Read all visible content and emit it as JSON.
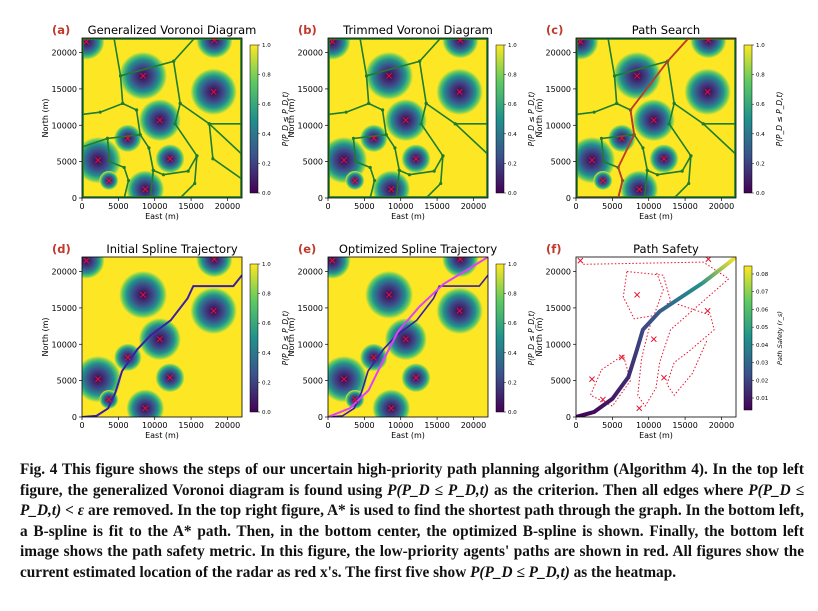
{
  "figure": {
    "panels": [
      {
        "letter": "(a)",
        "title": "Generalized Voronoi Diagram",
        "overlay": "gvd",
        "ylabel": "North (m)",
        "xlabel": "East (m)",
        "cbar_label": "P(P_D ≤ P_D,t)"
      },
      {
        "letter": "(b)",
        "title": "Trimmed Voronoi Diagram",
        "overlay": "trimmed",
        "ylabel": "North (m)",
        "xlabel": "East (m)",
        "cbar_label": "P(P_D ≤ P_D,t)"
      },
      {
        "letter": "(c)",
        "title": "Path Search",
        "overlay": "search",
        "ylabel": "North (m)",
        "xlabel": "East (m)",
        "cbar_label": "P(P_D ≤ P_D,t)"
      },
      {
        "letter": "(d)",
        "title": "Initial Spline Trajectory",
        "overlay": "initial",
        "ylabel": "North (m)",
        "xlabel": "East (m)",
        "cbar_label": "P(P_D ≤ P_D,t)"
      },
      {
        "letter": "(e)",
        "title": "Optimized Spline Trajectory",
        "overlay": "optimized",
        "ylabel": "North (m)",
        "xlabel": "East (m)",
        "cbar_label": "P(P_D ≤ P_D,t)"
      },
      {
        "letter": "(f)",
        "title": "Path Safety",
        "overlay": "safety",
        "ylabel": "North (m)",
        "xlabel": "East (m)",
        "cbar_label": "Path Safety (r_s)"
      }
    ],
    "x_ticks": [
      "0",
      "5000",
      "10000",
      "15000",
      "20000"
    ],
    "y_ticks": [
      "0",
      "5000",
      "10000",
      "15000",
      "20000"
    ],
    "cbar_ticks": [
      "0.0",
      "0.2",
      "0.4",
      "0.6",
      "0.8",
      "1.0"
    ],
    "safety_cbar_ticks": [
      "0.01",
      "0.02",
      "0.03",
      "0.04",
      "0.05",
      "0.06",
      "0.07",
      "0.08"
    ],
    "colors": {
      "safe": "#fde725",
      "danger": "#440154",
      "mid": "#21918c",
      "edge": "#1e7d2e",
      "radar": "#e8112d",
      "trim_path": "#c0392b",
      "initial": "#3b1fa3",
      "optimized": "#e040fb",
      "lowprio": "#e8112d"
    }
  },
  "chart_data": {
    "type": "heatmap",
    "extent": {
      "xlim": [
        0,
        22000
      ],
      "ylim": [
        0,
        22000
      ]
    },
    "colorbar_range": [
      0,
      1
    ],
    "radars": [
      {
        "x": 2200,
        "y": 5200,
        "r": 3200
      },
      {
        "x": 3700,
        "y": 2400,
        "r": 1300
      },
      {
        "x": 6300,
        "y": 8200,
        "r": 1900
      },
      {
        "x": 8700,
        "y": 1200,
        "r": 2600
      },
      {
        "x": 8400,
        "y": 16800,
        "r": 3300
      },
      {
        "x": 10700,
        "y": 10700,
        "r": 2900
      },
      {
        "x": 12100,
        "y": 5400,
        "r": 2000
      },
      {
        "x": 18100,
        "y": 14600,
        "r": 3200
      },
      {
        "x": 18200,
        "y": 21700,
        "r": 2500
      },
      {
        "x": 600,
        "y": 21500,
        "r": 2500
      }
    ],
    "initial_path": [
      [
        0,
        0
      ],
      [
        2000,
        150
      ],
      [
        3600,
        1200
      ],
      [
        4600,
        3400
      ],
      [
        5500,
        6300
      ],
      [
        7600,
        9300
      ],
      [
        9400,
        11200
      ],
      [
        12200,
        13300
      ],
      [
        14500,
        16300
      ],
      [
        15300,
        18000
      ],
      [
        18000,
        18000
      ],
      [
        20800,
        18000
      ],
      [
        22000,
        19500
      ]
    ],
    "optimized_path": [
      [
        0,
        0
      ],
      [
        3000,
        1200
      ],
      [
        5600,
        3700
      ],
      [
        7600,
        7800
      ],
      [
        9600,
        11700
      ],
      [
        12500,
        15100
      ],
      [
        15900,
        18300
      ],
      [
        19600,
        20500
      ],
      [
        22000,
        22000
      ]
    ],
    "safety_path_range": [
      0.01,
      0.08
    ]
  },
  "caption": {
    "p1": "Fig. 4   This figure shows the steps of our uncertain high-priority path planning algorithm (Algorithm 4). In the top left figure, the generalized Voronoi diagram is found using ",
    "m1": "P(P_D ≤ P_D,t)",
    "p2": " as the criterion. Then all edges where ",
    "m2": "P(P_D ≤ P_D,t) < ε",
    "p3": " are removed. In the top right figure, A* is used to find the shortest path through the graph. In the bottom left, a B-spline is fit to the A* path. Then, in the bottom center, the optimized B-spline is shown. Finally, the bottom left image shows the path safety metric. In this figure, the low-priority agents' paths are shown in red. All figures show the current estimated location of the radar as red x's. The first five show ",
    "m3": "P(P_D ≤ P_D,t)",
    "p4": " as the heatmap."
  }
}
